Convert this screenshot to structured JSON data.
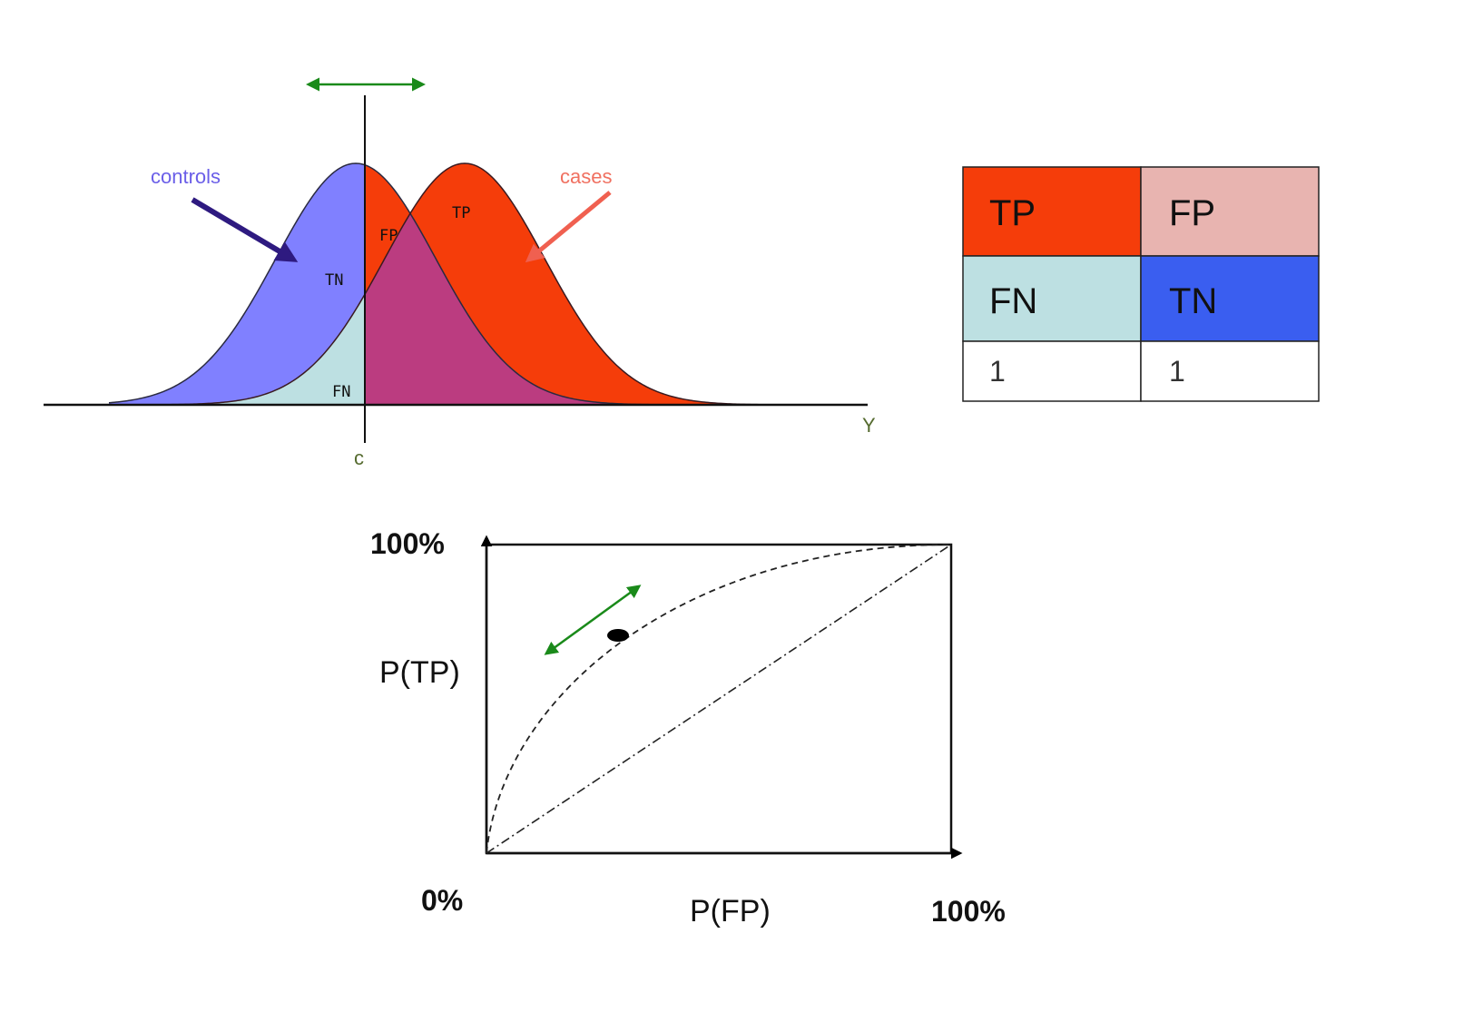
{
  "distribution_plot": {
    "controls_label": "controls",
    "cases_label": "cases",
    "region_tn": "TN",
    "region_fp": "FP",
    "region_tp": "TP",
    "region_fn": "FN",
    "x_axis_label": "Y",
    "threshold_label": "c"
  },
  "confusion_table": {
    "row1": [
      "TP",
      "FP"
    ],
    "row2": [
      "FN",
      "TN"
    ],
    "row3": [
      "1",
      "1"
    ]
  },
  "roc_plot": {
    "y_max_label": "100%",
    "y_axis_label": "P(TP)",
    "origin_label": "0%",
    "x_axis_label": "P(FP)",
    "x_max_label": "100%"
  },
  "colors": {
    "controls": "#8080ff",
    "cases": "#f53d0a",
    "overlap": "#bb3c80",
    "fp": "#e8b4b0",
    "fn": "#bde0e2",
    "tn_cell": "#3a5ef0",
    "tp_cell": "#f53d0a",
    "fp_cell": "#e8b4b0",
    "fn_cell": "#bde0e2",
    "arrow_green": "#1a8a1a",
    "controls_arrow": "#2e1a80",
    "cases_arrow": "#f06050"
  }
}
